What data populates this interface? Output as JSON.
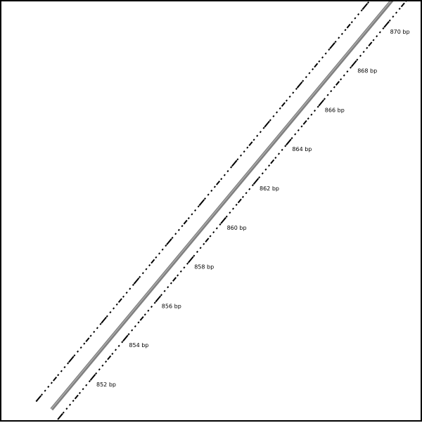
{
  "sequence_map": {
    "backbone_color": "#808080",
    "tick_color": "#000000",
    "lower_ruler": {
      "labels": [
        {
          "bp": 852,
          "text": "852 bp"
        },
        {
          "bp": 854,
          "text": "854 bp"
        },
        {
          "bp": 856,
          "text": "856 bp"
        },
        {
          "bp": 858,
          "text": "858 bp"
        },
        {
          "bp": 860,
          "text": "860 bp"
        },
        {
          "bp": 862,
          "text": "862 bp"
        },
        {
          "bp": 864,
          "text": "864 bp"
        },
        {
          "bp": 866,
          "text": "866 bp"
        },
        {
          "bp": 868,
          "text": "868 bp"
        },
        {
          "bp": 870,
          "text": "870 bp"
        }
      ]
    }
  }
}
